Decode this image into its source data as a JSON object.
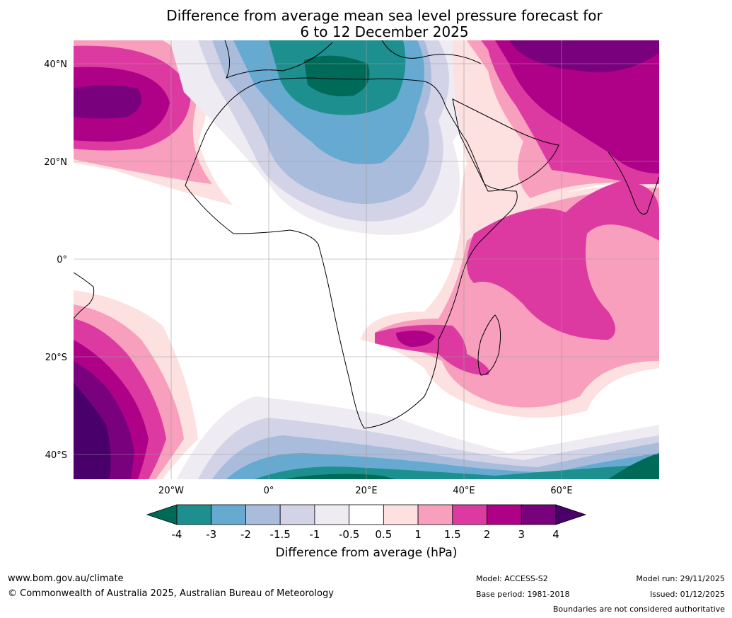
{
  "title": {
    "line1": "Difference from average mean sea level pressure forecast for",
    "line2": "6 to 12 December 2025"
  },
  "map": {
    "lat_labels": [
      "40°N",
      "20°N",
      "0°",
      "20°S",
      "40°S"
    ],
    "lon_labels": [
      "20°W",
      "0°",
      "20°E",
      "40°E",
      "60°E"
    ]
  },
  "colorbar": {
    "ticks": [
      "-4",
      "-3",
      "-2",
      "-1.5",
      "-1",
      "-0.5",
      "0.5",
      "1",
      "1.5",
      "2",
      "3",
      "4"
    ],
    "colors": [
      "#006a58",
      "#1e8f8f",
      "#66a9d1",
      "#a9bcdc",
      "#d2d3e6",
      "#efebf3",
      "#ffffff",
      "#fde0e0",
      "#f79fbd",
      "#dd3aa1",
      "#ae0187",
      "#7a017d",
      "#49006a"
    ],
    "label": "Difference from average (hPa)"
  },
  "footer": {
    "url": "www.bom.gov.au/climate",
    "copyright": "© Commonwealth of Australia 2025, Australian Bureau of Meteorology",
    "model": "Model: ACCESS-S2",
    "base_period": "Base period: 1981-2018",
    "model_run": "Model run: 29/11/2025",
    "issued": "Issued: 01/12/2025",
    "disclaimer": "Boundaries are not considered authoritative"
  }
}
